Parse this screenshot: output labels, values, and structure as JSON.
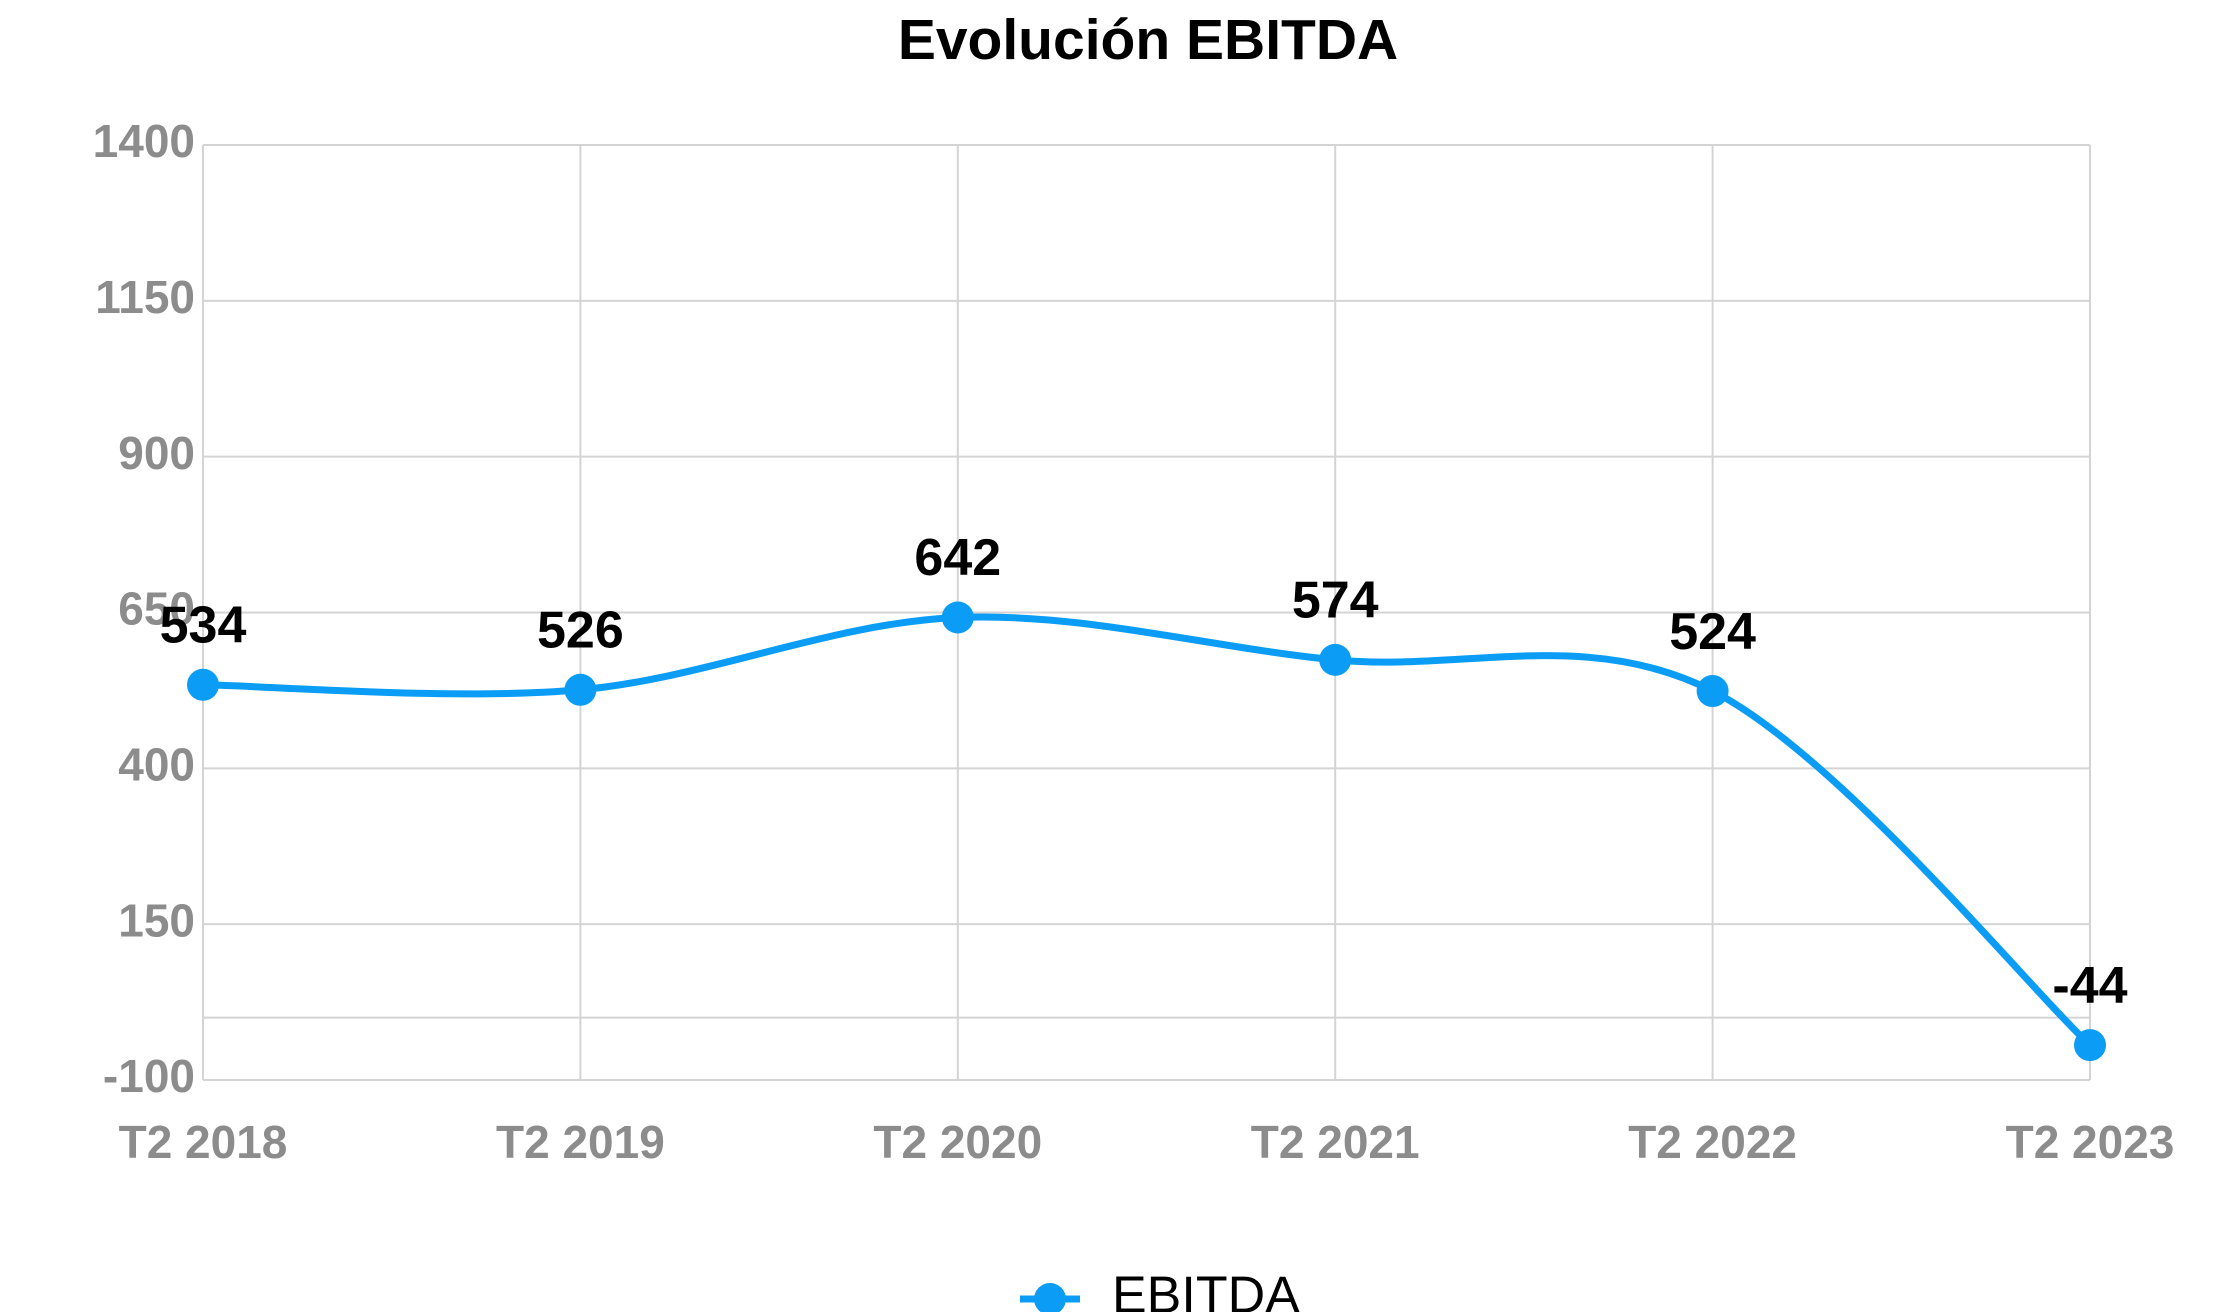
{
  "chart_data": {
    "type": "line",
    "title": "Evolución EBITDA",
    "categories": [
      "T2 2018",
      "T2 2019",
      "T2 2020",
      "T2 2021",
      "T2 2022",
      "T2 2023"
    ],
    "series": [
      {
        "name": "EBITDA",
        "color": "#0b9df5",
        "values": [
          534,
          526,
          642,
          574,
          524,
          -44
        ]
      }
    ],
    "ylim": [
      -100,
      1400
    ],
    "yticks": [
      -100,
      150,
      400,
      650,
      900,
      1150,
      1400
    ],
    "grid": true,
    "zero_line": true,
    "smooth": true,
    "legend": "bottom"
  }
}
